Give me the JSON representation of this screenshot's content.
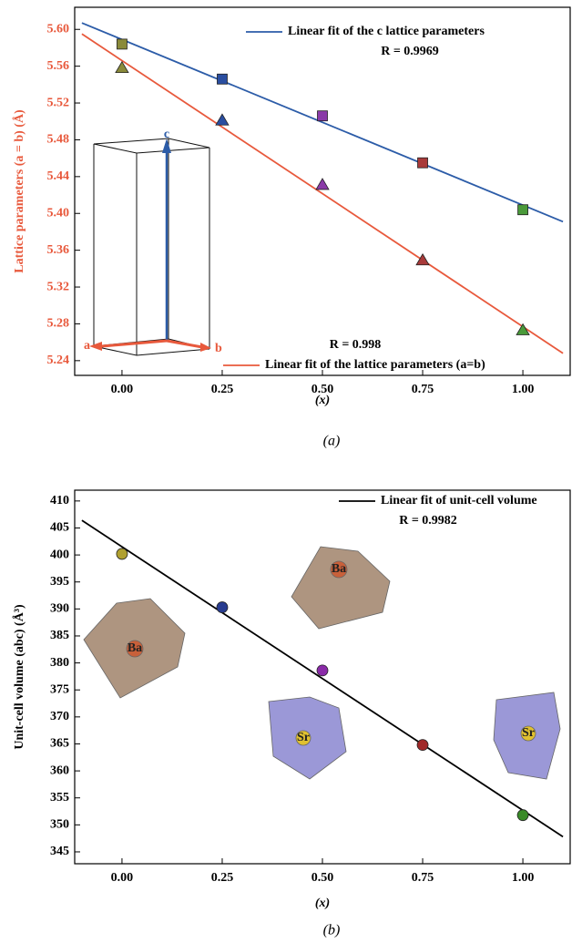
{
  "chart_data": [
    {
      "type": "scatter",
      "caption": "(a)",
      "xlabel": "(x)",
      "ylabel": "Lattice parameters (a = b) (Å)",
      "label_color": "#e8593c",
      "xlim": [
        -0.118,
        1.118
      ],
      "ylim": [
        5.224,
        5.624
      ],
      "xticks": [
        {
          "value": 0,
          "label": "0.00"
        },
        0.25,
        {
          "value": 0.5,
          "label": "0.50"
        },
        0.75,
        {
          "value": 1,
          "label": "1.00"
        }
      ],
      "yticks": [
        5.24,
        5.28,
        5.32,
        5.36,
        {
          "value": 5.4,
          "label": "5.40"
        },
        5.44,
        5.48,
        5.52,
        5.56,
        {
          "value": 5.6,
          "label": "5.60"
        }
      ],
      "series": [
        {
          "name": "Linear fit of the c lattice parameters",
          "color": "#2c5ca8",
          "x": [
            -0.1,
            1.1
          ],
          "values": [
            5.607,
            5.391
          ]
        },
        {
          "name": "Linear fit of the lattice parameters (a=b)",
          "color": "#e8593c",
          "x": [
            -0.1,
            1.1
          ],
          "values": [
            5.595,
            5.248
          ]
        },
        {
          "marker": "square",
          "colors": [
            "#8a8a3a",
            "#2a4ea0",
            "#8a3aa8",
            "#a83a3a",
            "#4a9a3a"
          ],
          "x": [
            0,
            0.25,
            0.5,
            0.75,
            1
          ],
          "values": [
            5.584,
            5.546,
            5.506,
            5.455,
            5.404
          ]
        },
        {
          "marker": "triangle",
          "colors": [
            "#8a8a3a",
            "#2a4ea0",
            "#8a3aa8",
            "#a83a3a",
            "#4a9a3a"
          ],
          "x": [
            0,
            0.25,
            0.5,
            0.75,
            1
          ],
          "values": [
            5.558,
            5.501,
            5.431,
            5.349,
            5.273
          ]
        }
      ],
      "annotations": [
        "R = 0.9969",
        "R = 0.998"
      ],
      "inset_labels": [
        "a",
        "b",
        "c"
      ]
    },
    {
      "type": "scatter",
      "caption": "(b)",
      "xlabel": "(x)",
      "ylabel": "Unit-cell volume (abc) (Å³)",
      "label_color": "#000000",
      "xlim": [
        -0.118,
        1.118
      ],
      "ylim": [
        342.8,
        412
      ],
      "xticks": [
        {
          "value": 0,
          "label": "0.00"
        },
        0.25,
        {
          "value": 0.5,
          "label": "0.50"
        },
        0.75,
        {
          "value": 1,
          "label": "1.00"
        }
      ],
      "yticks": [
        345,
        350,
        355,
        360,
        365,
        370,
        375,
        380,
        385,
        390,
        395,
        400,
        405,
        410
      ],
      "series": [
        {
          "name": "Linear fit of unit-cell volume",
          "color": "#000000",
          "x": [
            -0.1,
            1.1
          ],
          "values": [
            406.4,
            347.8
          ]
        },
        {
          "marker": "sphere",
          "colors": [
            "#b0a030",
            "#283c90",
            "#8a2aa8",
            "#a02828",
            "#3a8a28"
          ],
          "x": [
            0,
            0.25,
            0.5,
            0.75,
            1
          ],
          "values": [
            400.2,
            390.3,
            378.6,
            364.8,
            351.8
          ]
        }
      ],
      "annotations": [
        "R = 0.9982"
      ],
      "inset_labels": [
        "Ba",
        "Ba",
        "Sr",
        "Sr"
      ]
    }
  ]
}
